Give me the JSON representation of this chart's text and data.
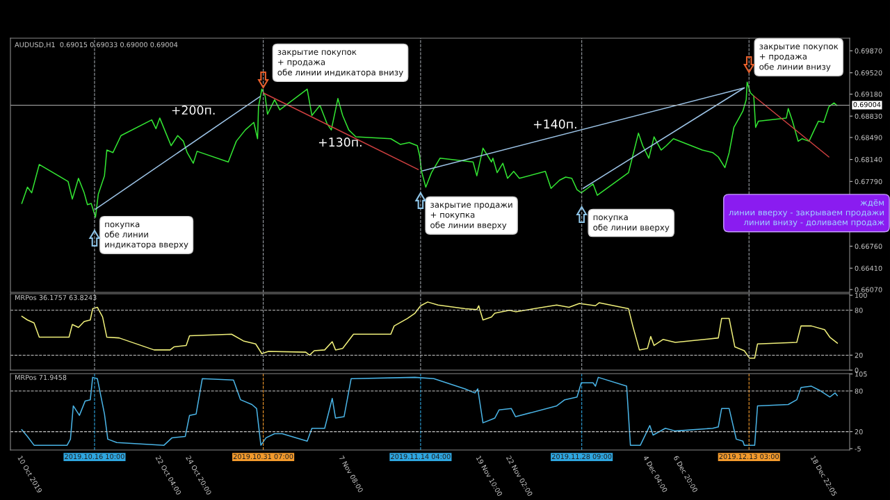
{
  "chart_data": [
    {
      "type": "line",
      "title": "AUDUSD,H1  0.69015 0.69033 0.69000 0.69004",
      "xlim": [
        "2019-10-09T00:00",
        "2019-12-22T00:00"
      ],
      "ylim": [
        0.66025,
        0.7007
      ],
      "yticks": [
        {
          "value": 0.6987,
          "label": "0.69870"
        },
        {
          "value": 0.6952,
          "label": "0.69520"
        },
        {
          "value": 0.6918,
          "label": "0.69180"
        },
        {
          "value": 0.6883,
          "label": "0.68830"
        },
        {
          "value": 0.6849,
          "label": "0.68490"
        },
        {
          "value": 0.6814,
          "label": "0.68140"
        },
        {
          "value": 0.6779,
          "label": "0.67790"
        },
        {
          "value": 0.6676,
          "label": "0.66760"
        },
        {
          "value": 0.6641,
          "label": "0.66410"
        },
        {
          "value": 0.6607,
          "label": "0.66070"
        }
      ],
      "tick_labels": "y",
      "grid": false,
      "legend": false,
      "series": [
        {
          "color": "#33e633",
          "x": [
            "2019-10-10T00:00",
            "2019-10-10T12:00",
            "2019-10-10T21:00",
            "2019-10-11T13:00",
            "2019-10-14T02:00",
            "2019-10-14T11:00",
            "2019-10-15T00:00",
            "2019-10-15T12:00",
            "2019-10-15T19:00",
            "2019-10-16T03:00",
            "2019-10-16T12:00",
            "2019-10-16T18:00",
            "2019-10-17T07:00",
            "2019-10-17T12:00",
            "2019-10-18T01:00",
            "2019-10-18T18:00",
            "2019-10-21T11:00",
            "2019-10-21T20:00",
            "2019-10-22T04:00",
            "2019-10-22T17:00",
            "2019-10-23T04:00",
            "2019-10-23T18:00",
            "2019-10-24T06:00",
            "2019-10-24T14:00",
            "2019-10-25T03:00",
            "2019-10-25T11:00",
            "2019-10-28T05:00",
            "2019-10-28T22:00",
            "2019-10-29T17:00",
            "2019-10-30T11:00",
            "2019-10-30T19:00",
            "2019-10-30T21:00",
            "2019-10-31T04:00",
            "2019-10-31T11:00",
            "2019-10-31T16:00",
            "2019-11-01T07:00",
            "2019-11-01T18:00",
            "2019-11-04T04:00",
            "2019-11-04T14:00",
            "2019-11-05T07:00",
            "2019-11-05T22:00",
            "2019-11-06T07:00",
            "2019-11-06T21:00",
            "2019-11-07T07:00",
            "2019-11-07T20:00",
            "2019-11-08T11:00",
            "2019-11-11T13:00",
            "2019-11-12T09:00",
            "2019-11-13T04:00",
            "2019-11-13T21:00",
            "2019-11-14T02:00",
            "2019-11-14T06:00",
            "2019-11-14T15:00",
            "2019-11-15T03:00",
            "2019-11-15T21:00",
            "2019-11-18T19:00",
            "2019-11-19T03:00",
            "2019-11-19T16:00",
            "2019-11-20T10:00",
            "2019-11-20T13:00",
            "2019-11-20T22:00",
            "2019-11-21T10:00",
            "2019-11-21T20:00",
            "2019-11-22T09:00",
            "2019-11-22T21:00",
            "2019-11-25T04:00",
            "2019-11-25T16:00",
            "2019-11-26T10:00",
            "2019-11-26T23:00",
            "2019-11-27T12:00",
            "2019-11-27T23:00",
            "2019-11-28T08:00",
            "2019-11-28T21:00",
            "2019-11-29T09:00",
            "2019-11-29T18:00",
            "2019-12-02T12:00",
            "2019-12-02T21:00",
            "2019-12-03T09:00",
            "2019-12-03T18:00",
            "2019-12-04T07:00",
            "2019-12-04T18:00",
            "2019-12-05T09:00",
            "2019-12-05T20:00",
            "2019-12-06T11:00",
            "2019-12-09T00:00",
            "2019-12-09T22:00",
            "2019-12-10T10:00",
            "2019-12-11T00:00",
            "2019-12-11T09:00",
            "2019-12-11T19:00",
            "2019-12-12T06:00",
            "2019-12-12T14:00",
            "2019-12-12T21:00",
            "2019-12-12T23:00",
            "2019-12-13T06:00",
            "2019-12-13T13:00",
            "2019-12-13T17:00",
            "2019-12-13T23:00",
            "2019-12-16T10:00",
            "2019-12-16T14:00",
            "2019-12-16T23:00",
            "2019-12-17T11:00",
            "2019-12-17T19:00",
            "2019-12-18T10:00",
            "2019-12-18T21:00",
            "2019-12-19T06:00",
            "2019-12-19T17:00",
            "2019-12-20T04:00",
            "2019-12-20T15:00",
            "2019-12-20T21:00"
          ],
          "values": [
            0.6744,
            0.677,
            0.6761,
            0.6806,
            0.6779,
            0.6751,
            0.6784,
            0.6761,
            0.6742,
            0.6744,
            0.6722,
            0.6759,
            0.6788,
            0.6829,
            0.6825,
            0.6852,
            0.6877,
            0.6863,
            0.688,
            0.6856,
            0.6836,
            0.6852,
            0.6843,
            0.6825,
            0.6808,
            0.6827,
            0.681,
            0.6843,
            0.6861,
            0.6873,
            0.6847,
            0.6898,
            0.6926,
            0.6915,
            0.6886,
            0.6909,
            0.6893,
            0.6926,
            0.6884,
            0.69,
            0.6871,
            0.6861,
            0.6911,
            0.6884,
            0.6861,
            0.685,
            0.6847,
            0.6838,
            0.6841,
            0.6836,
            0.682,
            0.6795,
            0.677,
            0.6793,
            0.6816,
            0.681,
            0.6788,
            0.6832,
            0.681,
            0.6816,
            0.6793,
            0.6808,
            0.6784,
            0.6795,
            0.6784,
            0.6795,
            0.6768,
            0.6781,
            0.6786,
            0.6784,
            0.6766,
            0.6761,
            0.6768,
            0.6775,
            0.6757,
            0.6793,
            0.682,
            0.6856,
            0.6836,
            0.6816,
            0.685,
            0.6829,
            0.6836,
            0.6847,
            0.6829,
            0.6825,
            0.6818,
            0.6801,
            0.6825,
            0.6865,
            0.688,
            0.6891,
            0.6909,
            0.6937,
            0.692,
            0.6915,
            0.6865,
            0.6875,
            0.688,
            0.6895,
            0.6875,
            0.6843,
            0.6847,
            0.6843,
            0.6861,
            0.6875,
            0.6873,
            0.6898,
            0.6904,
            0.69
          ]
        },
        {
          "type": "line",
          "color": "#9cc3e6",
          "x": [
            "2019-10-16T12:00",
            "2019-10-31T00:00"
          ],
          "values": [
            0.6735,
            0.6914
          ]
        },
        {
          "type": "line",
          "color": "#d04040",
          "x": [
            "2019-10-31T07:00",
            "2019-11-13T23:00"
          ],
          "values": [
            0.692,
            0.6798
          ]
        },
        {
          "type": "line",
          "color": "#9cc3e6",
          "x": [
            "2019-11-14T08:00",
            "2019-12-12T17:00"
          ],
          "values": [
            0.6796,
            0.6928
          ]
        },
        {
          "type": "line",
          "color": "#9cc3e6",
          "x": [
            "2019-11-28T12:00",
            "2019-12-12T17:00"
          ],
          "values": [
            0.6768,
            0.6928
          ]
        },
        {
          "type": "line",
          "color": "#d04040",
          "x": [
            "2019-12-13T13:00",
            "2019-12-20T04:00"
          ],
          "values": [
            0.6915,
            0.6818
          ]
        }
      ],
      "ref_lines": [
        {
          "axis": "y",
          "value": 0.69004,
          "label": "0.69004",
          "color": "#b0b0b0"
        },
        {
          "axis": "x",
          "value": "2019-10-16T10:00",
          "line_style": "dashed"
        },
        {
          "axis": "x",
          "value": "2019-10-31T07:00",
          "line_style": "dashed"
        },
        {
          "axis": "x",
          "value": "2019-11-14T04:00",
          "line_style": "dashed"
        },
        {
          "axis": "x",
          "value": "2019-11-28T09:00",
          "line_style": "dashed"
        },
        {
          "axis": "x",
          "value": "2019-12-13T03:00",
          "line_style": "dashed"
        }
      ],
      "annotations": [
        "покупка\nобе линии\nиндикатора вверху",
        "закрытие покупок\n+ продажа\nобе линии индикатора внизу",
        "закрытие продажи\n+ покупка\nобе линии вверху",
        "покупка\nобе линии вверху",
        "закрытие покупок\n+ продажа\nобе линии внизу",
        "+200п.",
        "+130п.",
        "+140п.",
        "ждём\nлинии вверху - закрываем продажи\nлинии внизу - доливаем продаж"
      ]
    },
    {
      "type": "line",
      "title": "MRPos 36.1757 63.8243",
      "xlim": [
        "2019-10-09T00:00",
        "2019-12-22T00:00"
      ],
      "ylim": [
        0,
        102
      ],
      "yticks": [
        0,
        20,
        80,
        100
      ],
      "tick_labels": "y",
      "grid": false,
      "legend": false,
      "series": [
        {
          "color": "#f0f07a",
          "x": [
            "2019-10-10T00:00",
            "2019-10-10T12:00",
            "2019-10-11T02:00",
            "2019-10-11T13:00",
            "2019-10-14T04:00",
            "2019-10-14T11:00",
            "2019-10-15T00:00",
            "2019-10-15T12:00",
            "2019-10-16T01:00",
            "2019-10-16T06:00",
            "2019-10-16T16:00",
            "2019-10-17T03:00",
            "2019-10-17T12:00",
            "2019-10-18T14:00",
            "2019-10-21T16:00",
            "2019-10-23T02:00",
            "2019-10-23T10:00",
            "2019-10-24T12:00",
            "2019-10-24T19:00",
            "2019-10-28T12:00",
            "2019-10-29T13:00",
            "2019-10-30T15:00",
            "2019-10-31T04:00",
            "2019-10-31T18:00",
            "2019-11-04T01:00",
            "2019-11-04T09:00",
            "2019-11-04T19:00",
            "2019-11-05T17:00",
            "2019-11-06T09:00",
            "2019-11-06T16:00",
            "2019-11-07T07:00",
            "2019-11-08T06:00",
            "2019-11-11T13:00",
            "2019-11-11T20:00",
            "2019-11-13T00:00",
            "2019-11-13T16:00",
            "2019-11-14T04:00",
            "2019-11-14T19:00",
            "2019-11-15T17:00",
            "2019-11-18T02:00",
            "2019-11-19T03:00",
            "2019-11-19T07:00",
            "2019-11-19T16:00",
            "2019-11-20T10:00",
            "2019-11-20T17:00",
            "2019-11-22T00:00",
            "2019-11-22T13:00",
            "2019-11-26T04:00",
            "2019-11-27T06:00",
            "2019-11-28T04:00",
            "2019-11-29T14:00",
            "2019-11-29T22:00",
            "2019-12-02T12:00",
            "2019-12-02T21:00",
            "2019-12-03T11:00",
            "2019-12-04T04:00",
            "2019-12-04T11:00",
            "2019-12-04T18:00",
            "2019-12-05T13:00",
            "2019-12-06T15:00",
            "2019-12-10T10:00",
            "2019-12-10T17:00",
            "2019-12-11T09:00",
            "2019-12-11T21:00",
            "2019-12-12T17:00",
            "2019-12-13T04:00",
            "2019-12-13T15:00",
            "2019-12-13T21:00",
            "2019-12-17T08:00",
            "2019-12-17T17:00",
            "2019-12-18T15:00",
            "2019-12-19T19:00",
            "2019-12-20T06:00",
            "2019-12-20T22:00"
          ],
          "values": [
            72,
            67,
            63,
            44,
            44,
            61,
            57,
            65,
            67,
            82,
            84,
            71,
            44,
            43,
            27,
            27,
            31,
            33,
            46,
            48,
            39,
            35,
            22,
            25,
            24,
            20,
            26,
            27,
            38,
            27,
            29,
            48,
            48,
            59,
            69,
            76,
            86,
            91,
            87,
            82,
            81,
            86,
            67,
            71,
            76,
            80,
            78,
            87,
            84,
            89,
            86,
            90,
            82,
            59,
            27,
            29,
            45,
            33,
            41,
            37,
            43,
            69,
            69,
            31,
            26,
            16,
            16,
            35,
            37,
            59,
            59,
            54,
            44,
            36
          ]
        }
      ],
      "ref_lines": [
        {
          "axis": "y",
          "value": 80,
          "line_style": "dashed",
          "color": "#c8c8c8"
        },
        {
          "axis": "y",
          "value": 20,
          "line_style": "dashed",
          "color": "#c8c8c8"
        },
        {
          "axis": "x",
          "value": "2019-10-16T10:00",
          "line_style": "dashed"
        },
        {
          "axis": "x",
          "value": "2019-10-31T07:00",
          "line_style": "dashed"
        },
        {
          "axis": "x",
          "value": "2019-11-14T04:00",
          "line_style": "dashed"
        },
        {
          "axis": "x",
          "value": "2019-11-28T09:00",
          "line_style": "dashed"
        },
        {
          "axis": "x",
          "value": "2019-12-13T03:00",
          "line_style": "dashed"
        }
      ]
    },
    {
      "type": "line",
      "title": "MRPos 71.9458",
      "xlim": [
        "2019-10-09T00:00",
        "2019-12-22T00:00"
      ],
      "ylim": [
        -7,
        105.5
      ],
      "yticks": [
        -5,
        20,
        80,
        105
      ],
      "grid": false,
      "legend": false,
      "xticks": [
        {
          "value": "2019-10-10T00:00",
          "label": "10 Oct 2019"
        },
        {
          "value": "2019-10-22T04:00",
          "label": "22 Oct 04:00"
        },
        {
          "value": "2019-10-24T20:00",
          "label": "24 Oct 20:00"
        },
        {
          "value": "2019-11-07T08:00",
          "label": "7 Nov 08:00"
        },
        {
          "value": "2019-11-19T10:00",
          "label": "19 Nov 10:00"
        },
        {
          "value": "2019-11-22T02:00",
          "label": "22 Nov 02:00"
        },
        {
          "value": "2019-12-04T04:00",
          "label": "4 Dec 04:00"
        },
        {
          "value": "2019-12-06T20:00",
          "label": "6 Dec 20:00"
        },
        {
          "value": "2019-12-18T22:05",
          "label": "18 Dec 22:05"
        }
      ],
      "series": [
        {
          "color": "#4ab4e6",
          "x": [
            "2019-10-10T00:00",
            "2019-10-10T12:00",
            "2019-10-11T02:00",
            "2019-10-14T00:00",
            "2019-10-14T07:00",
            "2019-10-14T13:00",
            "2019-10-15T02:00",
            "2019-10-15T14:00",
            "2019-10-16T01:00",
            "2019-10-16T06:00",
            "2019-10-16T16:00",
            "2019-10-17T07:00",
            "2019-10-17T14:00",
            "2019-10-18T09:00",
            "2019-10-22T13:00",
            "2019-10-23T06:00",
            "2019-10-24T10:00",
            "2019-10-24T19:00",
            "2019-10-25T09:00",
            "2019-10-25T22:00",
            "2019-10-28T16:00",
            "2019-10-29T07:00",
            "2019-10-30T07:00",
            "2019-10-30T17:00",
            "2019-10-31T02:00",
            "2019-10-31T13:00",
            "2019-11-01T07:00",
            "2019-11-01T23:00",
            "2019-11-04T04:00",
            "2019-11-04T14:00",
            "2019-11-05T17:00",
            "2019-11-06T09:00",
            "2019-11-06T16:00",
            "2019-11-07T10:00",
            "2019-11-08T01:00",
            "2019-11-13T16:00",
            "2019-11-15T08:00",
            "2019-11-18T02:00",
            "2019-11-18T23:00",
            "2019-11-19T05:00",
            "2019-11-19T16:00",
            "2019-11-20T10:00",
            "2019-11-20T17:00",
            "2019-11-21T02:00",
            "2019-11-22T04:00",
            "2019-11-22T13:00",
            "2019-11-26T04:00",
            "2019-11-26T21:00",
            "2019-11-27T23:00",
            "2019-11-28T08:00",
            "2019-11-29T09:00",
            "2019-11-29T14:00",
            "2019-11-29T20:00",
            "2019-12-02T08:00",
            "2019-12-02T16:00",
            "2019-12-03T13:00",
            "2019-12-04T09:00",
            "2019-12-04T16:00",
            "2019-12-05T18:00",
            "2019-12-06T15:00",
            "2019-12-09T22:00",
            "2019-12-10T10:00",
            "2019-12-10T17:00",
            "2019-12-11T09:00",
            "2019-12-12T00:00",
            "2019-12-12T14:00",
            "2019-12-12T17:00",
            "2019-12-13T15:00",
            "2019-12-13T21:00",
            "2019-12-16T14:00",
            "2019-12-17T08:00",
            "2019-12-17T17:00",
            "2019-12-18T15:00",
            "2019-12-19T08:00",
            "2019-12-20T06:00",
            "2019-12-20T17:00",
            "2019-12-20T22:00"
          ],
          "values": [
            23,
            13,
            0,
            0,
            9,
            58,
            44,
            65,
            67,
            100,
            98,
            46,
            9,
            4,
            0,
            11,
            13,
            44,
            46,
            98,
            96,
            67,
            60,
            54,
            0,
            11,
            17,
            17,
            6,
            25,
            25,
            69,
            40,
            42,
            98,
            100,
            98,
            83,
            77,
            83,
            33,
            38,
            40,
            52,
            54,
            42,
            58,
            67,
            71,
            92,
            92,
            87,
            100,
            87,
            0,
            0,
            29,
            15,
            25,
            21,
            25,
            27,
            54,
            54,
            9,
            6,
            0,
            0,
            58,
            60,
            67,
            85,
            87,
            81,
            71,
            77,
            73
          ]
        }
      ],
      "ref_lines": [
        {
          "axis": "y",
          "value": 80,
          "line_style": "dashed",
          "color": "#c8c8c8"
        },
        {
          "axis": "y",
          "value": 20,
          "line_style": "dashed",
          "color": "#c8c8c8"
        },
        {
          "axis": "x",
          "value": "2019-10-16T10:00",
          "line_style": "dashed",
          "label": "2019.10.16 10:00",
          "color": "#2ea6e0"
        },
        {
          "axis": "x",
          "value": "2019-10-31T07:00",
          "line_style": "dashed",
          "label": "2019.10.31 07:00",
          "color": "#f39a2c"
        },
        {
          "axis": "x",
          "value": "2019-11-14T04:00",
          "line_style": "dashed",
          "label": "2019.11.14 04:00",
          "color": "#2ea6e0"
        },
        {
          "axis": "x",
          "value": "2019-11-28T09:00",
          "line_style": "dashed",
          "label": "2019.11.28 09:00",
          "color": "#2ea6e0"
        },
        {
          "axis": "x",
          "value": "2019-12-13T03:00",
          "line_style": "dashed",
          "label": "2019.12.13 03:00",
          "color": "#f39a2c"
        }
      ]
    }
  ]
}
